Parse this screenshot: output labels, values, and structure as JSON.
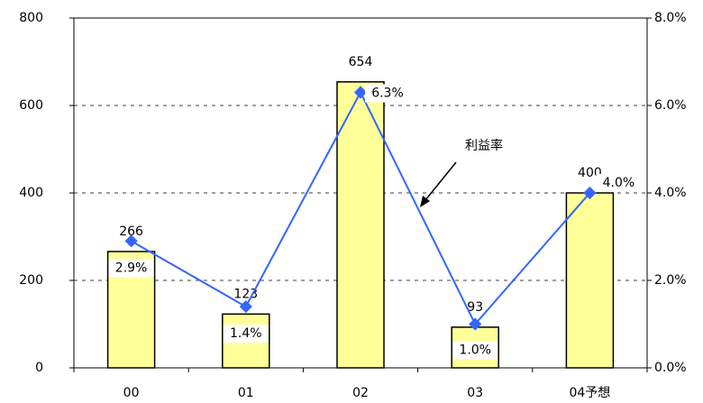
{
  "chart_data": {
    "type": "bar",
    "categories": [
      "00",
      "01",
      "02",
      "03",
      "04予想"
    ],
    "series": [
      {
        "type": "bar",
        "color": "#ffff99",
        "values": [
          266,
          123,
          654,
          93,
          400
        ]
      },
      {
        "type": "line",
        "name": "利益率",
        "color": "#3366ff",
        "axis": "y2",
        "values": [
          2.9,
          1.4,
          6.3,
          1.0,
          4.0
        ],
        "value_labels": [
          "2.9%",
          "1.4%",
          "6.3%",
          "1.0%",
          "4.0%"
        ]
      }
    ],
    "ylim": [
      0,
      800
    ],
    "yticks": [
      0,
      200,
      400,
      600,
      800
    ],
    "y2lim": [
      0,
      8
    ],
    "y2ticks": [
      {
        "value": 0,
        "label": "0.0%"
      },
      {
        "value": 2,
        "label": "2.0%"
      },
      {
        "value": 4,
        "label": "4.0%"
      },
      {
        "value": 6,
        "label": "6.0%"
      },
      {
        "value": 8,
        "label": "8.0%"
      }
    ],
    "grid": true
  }
}
